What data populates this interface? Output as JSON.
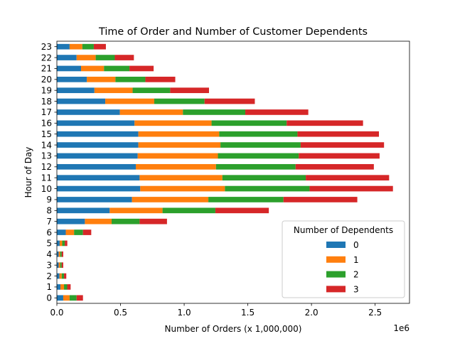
{
  "chart_data": {
    "type": "bar",
    "orientation": "horizontal",
    "stacked": true,
    "title": "Time of Order and Number of Customer Dependents",
    "xlabel": "Number of Orders (x 1,000,000)",
    "ylabel": "Hour of Day",
    "x_offset_text": "1e6",
    "xlim": [
      0,
      2770000
    ],
    "x_ticks": [
      0,
      500000,
      1000000,
      1500000,
      2000000,
      2500000
    ],
    "x_tick_labels": [
      "0.0",
      "0.5",
      "1.0",
      "1.5",
      "2.0",
      "2.5"
    ],
    "categories": [
      "0",
      "1",
      "2",
      "3",
      "4",
      "5",
      "6",
      "7",
      "8",
      "9",
      "10",
      "11",
      "12",
      "13",
      "14",
      "15",
      "16",
      "17",
      "18",
      "19",
      "20",
      "21",
      "22",
      "23"
    ],
    "legend": {
      "title": "Number of Dependents",
      "position": "lower-right"
    },
    "series": [
      {
        "name": "0",
        "color": "#1f77b4",
        "values": [
          50000,
          28000,
          20000,
          14000,
          14000,
          22000,
          70000,
          220000,
          415000,
          590000,
          655000,
          650000,
          620000,
          635000,
          640000,
          640000,
          610000,
          495000,
          380000,
          295000,
          235000,
          190000,
          155000,
          100000
        ]
      },
      {
        "name": "1",
        "color": "#ff7f0e",
        "values": [
          50000,
          28000,
          18000,
          12000,
          12000,
          20000,
          65000,
          210000,
          415000,
          600000,
          665000,
          650000,
          630000,
          630000,
          645000,
          635000,
          605000,
          495000,
          385000,
          300000,
          225000,
          180000,
          150000,
          100000
        ]
      },
      {
        "name": "2",
        "color": "#2ca02c",
        "values": [
          55000,
          25000,
          18000,
          12000,
          12000,
          20000,
          70000,
          220000,
          415000,
          590000,
          665000,
          655000,
          625000,
          635000,
          630000,
          615000,
          590000,
          490000,
          395000,
          295000,
          235000,
          200000,
          150000,
          90000
        ]
      },
      {
        "name": "3",
        "color": "#d62728",
        "values": [
          50000,
          27000,
          18000,
          12000,
          12000,
          20000,
          65000,
          215000,
          420000,
          580000,
          655000,
          655000,
          615000,
          635000,
          655000,
          640000,
          600000,
          495000,
          395000,
          305000,
          235000,
          190000,
          150000,
          95000
        ]
      }
    ]
  }
}
